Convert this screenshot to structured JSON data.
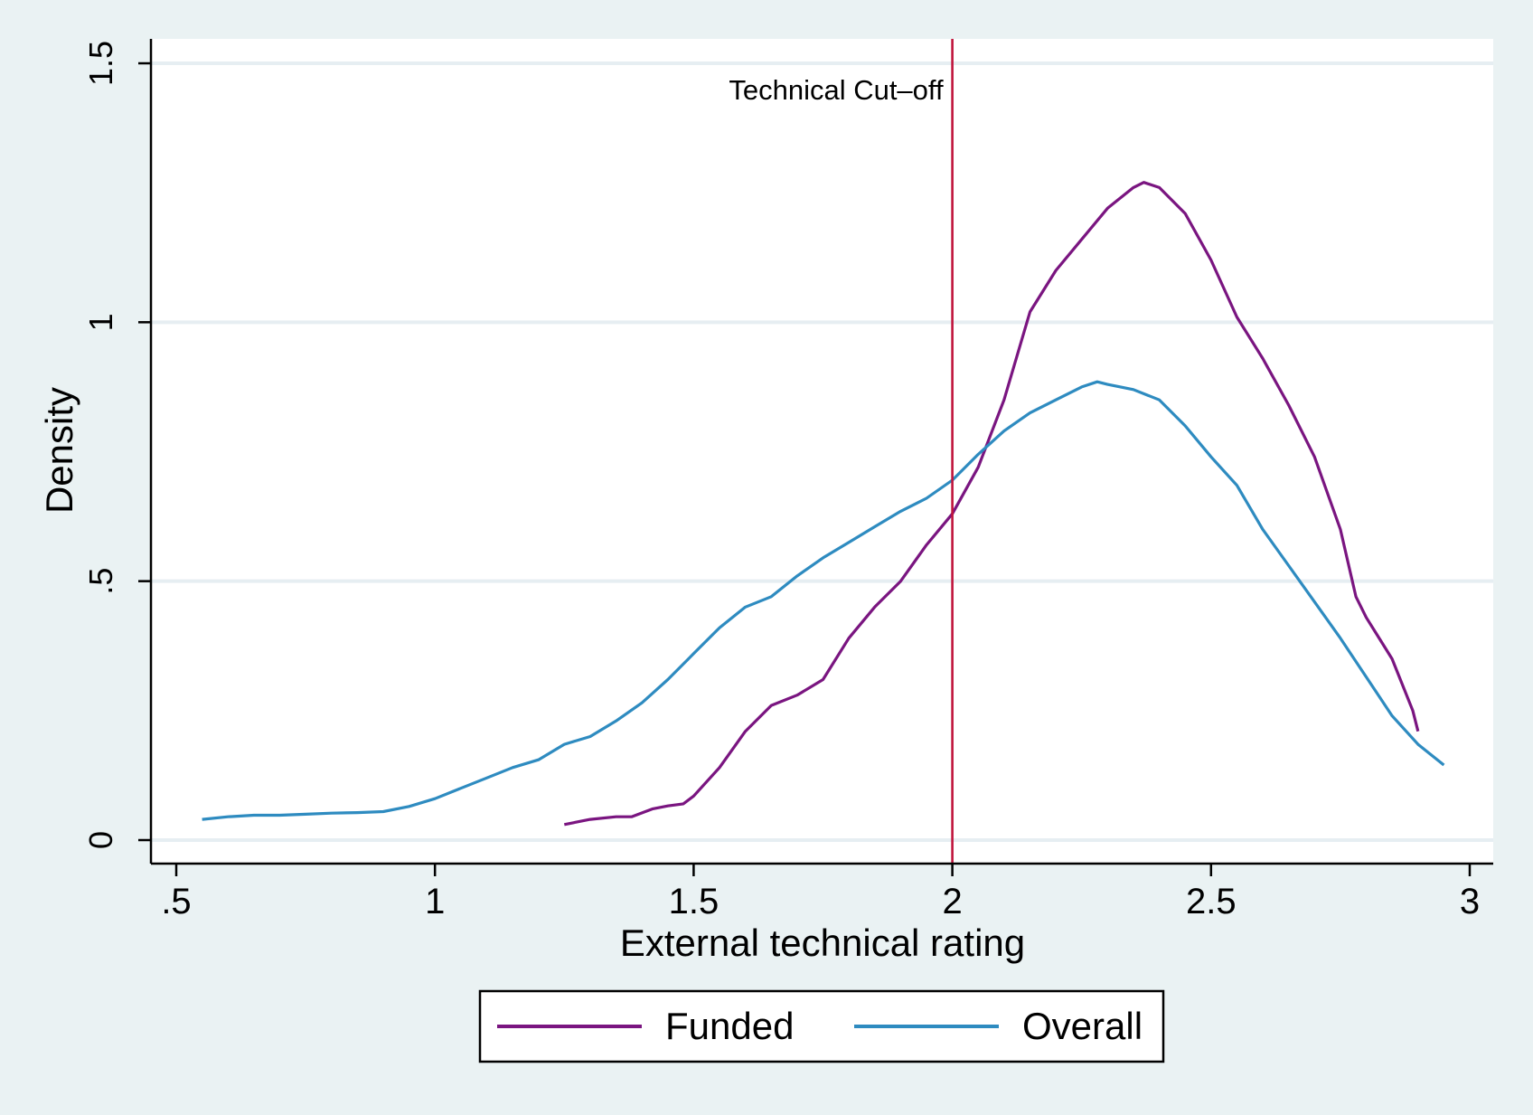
{
  "chart_data": {
    "type": "line",
    "title": "",
    "xlabel": "External technical rating",
    "ylabel": "Density",
    "xlim": [
      0.5,
      3.05
    ],
    "ylim": [
      -0.05,
      1.55
    ],
    "x_ticks": [
      0.5,
      1,
      1.5,
      2,
      2.5,
      3
    ],
    "x_tick_labels": [
      ".5",
      "1",
      "1.5",
      "2",
      "2.5",
      "3"
    ],
    "y_ticks": [
      0,
      0.5,
      1,
      1.5
    ],
    "y_tick_labels": [
      "0",
      ".5",
      "1",
      "1.5"
    ],
    "grid": true,
    "legend_position": "bottom",
    "cutoff": {
      "x": 2.0,
      "label": "Technical Cut–off",
      "color": "#c0143c"
    },
    "series": [
      {
        "name": "Funded",
        "color": "#7a1580",
        "points": [
          [
            1.25,
            0.03
          ],
          [
            1.3,
            0.04
          ],
          [
            1.35,
            0.045
          ],
          [
            1.38,
            0.045
          ],
          [
            1.42,
            0.06
          ],
          [
            1.45,
            0.066
          ],
          [
            1.48,
            0.07
          ],
          [
            1.5,
            0.085
          ],
          [
            1.55,
            0.14
          ],
          [
            1.6,
            0.21
          ],
          [
            1.65,
            0.26
          ],
          [
            1.7,
            0.28
          ],
          [
            1.75,
            0.31
          ],
          [
            1.8,
            0.39
          ],
          [
            1.85,
            0.45
          ],
          [
            1.9,
            0.5
          ],
          [
            1.95,
            0.57
          ],
          [
            2.0,
            0.63
          ],
          [
            2.05,
            0.72
          ],
          [
            2.1,
            0.85
          ],
          [
            2.15,
            1.02
          ],
          [
            2.2,
            1.1
          ],
          [
            2.25,
            1.16
          ],
          [
            2.3,
            1.22
          ],
          [
            2.35,
            1.26
          ],
          [
            2.37,
            1.27
          ],
          [
            2.4,
            1.26
          ],
          [
            2.45,
            1.21
          ],
          [
            2.5,
            1.12
          ],
          [
            2.55,
            1.01
          ],
          [
            2.6,
            0.93
          ],
          [
            2.65,
            0.84
          ],
          [
            2.7,
            0.74
          ],
          [
            2.75,
            0.6
          ],
          [
            2.78,
            0.47
          ],
          [
            2.8,
            0.43
          ],
          [
            2.85,
            0.35
          ],
          [
            2.89,
            0.25
          ],
          [
            2.9,
            0.21
          ]
        ]
      },
      {
        "name": "Overall",
        "color": "#2e8bc0",
        "points": [
          [
            0.55,
            0.04
          ],
          [
            0.6,
            0.045
          ],
          [
            0.65,
            0.048
          ],
          [
            0.7,
            0.048
          ],
          [
            0.75,
            0.05
          ],
          [
            0.8,
            0.052
          ],
          [
            0.85,
            0.053
          ],
          [
            0.9,
            0.055
          ],
          [
            0.95,
            0.065
          ],
          [
            1.0,
            0.08
          ],
          [
            1.05,
            0.1
          ],
          [
            1.1,
            0.12
          ],
          [
            1.15,
            0.14
          ],
          [
            1.2,
            0.155
          ],
          [
            1.25,
            0.185
          ],
          [
            1.3,
            0.2
          ],
          [
            1.35,
            0.23
          ],
          [
            1.4,
            0.265
          ],
          [
            1.45,
            0.31
          ],
          [
            1.5,
            0.36
          ],
          [
            1.55,
            0.41
          ],
          [
            1.6,
            0.45
          ],
          [
            1.65,
            0.47
          ],
          [
            1.7,
            0.51
          ],
          [
            1.75,
            0.545
          ],
          [
            1.8,
            0.575
          ],
          [
            1.85,
            0.605
          ],
          [
            1.9,
            0.635
          ],
          [
            1.95,
            0.66
          ],
          [
            2.0,
            0.695
          ],
          [
            2.05,
            0.745
          ],
          [
            2.1,
            0.79
          ],
          [
            2.15,
            0.825
          ],
          [
            2.2,
            0.85
          ],
          [
            2.25,
            0.875
          ],
          [
            2.28,
            0.885
          ],
          [
            2.3,
            0.88
          ],
          [
            2.35,
            0.87
          ],
          [
            2.4,
            0.85
          ],
          [
            2.45,
            0.8
          ],
          [
            2.5,
            0.74
          ],
          [
            2.55,
            0.685
          ],
          [
            2.6,
            0.6
          ],
          [
            2.65,
            0.53
          ],
          [
            2.7,
            0.46
          ],
          [
            2.75,
            0.39
          ],
          [
            2.8,
            0.315
          ],
          [
            2.85,
            0.24
          ],
          [
            2.9,
            0.185
          ],
          [
            2.95,
            0.145
          ]
        ]
      }
    ]
  }
}
